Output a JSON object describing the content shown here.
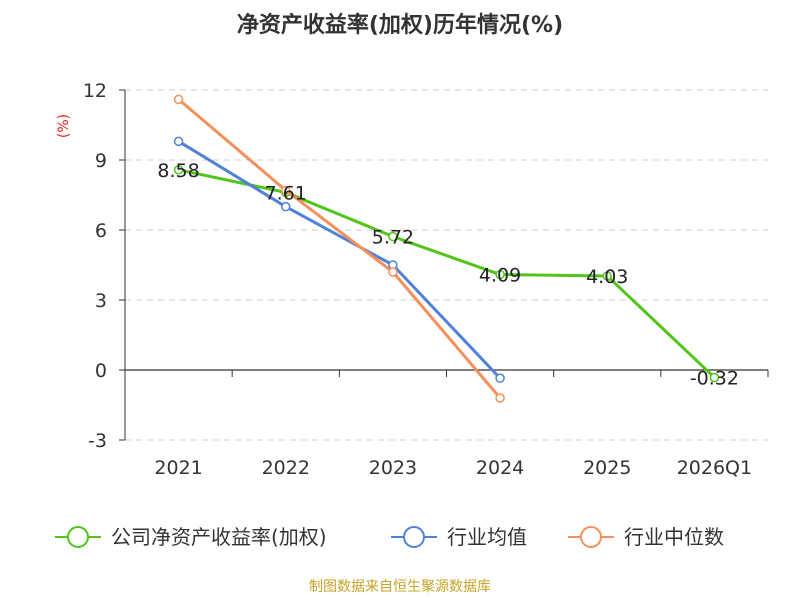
{
  "chart_data": {
    "type": "line",
    "title": "净资产收益率(加权)历年情况(%)",
    "ylabel": "(%)",
    "xlabel": "",
    "categories": [
      "2021",
      "2022",
      "2023",
      "2024",
      "2025",
      "2026Q1"
    ],
    "yticks": [
      "12",
      "9",
      "6",
      "3",
      "0",
      "-3"
    ],
    "ylim": [
      -3,
      12
    ],
    "grid": true,
    "legend_position": "bottom",
    "series": [
      {
        "name": "公司净资产收益率(加权)",
        "color": "#52c41a",
        "values": [
          8.58,
          7.61,
          5.72,
          4.09,
          4.03,
          -0.32
        ],
        "labels": [
          "8.58",
          "7.61",
          "5.72",
          "4.09",
          "4.03",
          "-0.32"
        ]
      },
      {
        "name": "行业均值",
        "color": "#4f81d9",
        "values": [
          9.8,
          7.0,
          4.5,
          -0.35,
          null,
          null
        ]
      },
      {
        "name": "行业中位数",
        "color": "#f5905a",
        "values": [
          11.6,
          7.7,
          4.2,
          -1.2,
          null,
          null
        ]
      }
    ],
    "source": "制图数据来自恒生聚源数据库"
  }
}
